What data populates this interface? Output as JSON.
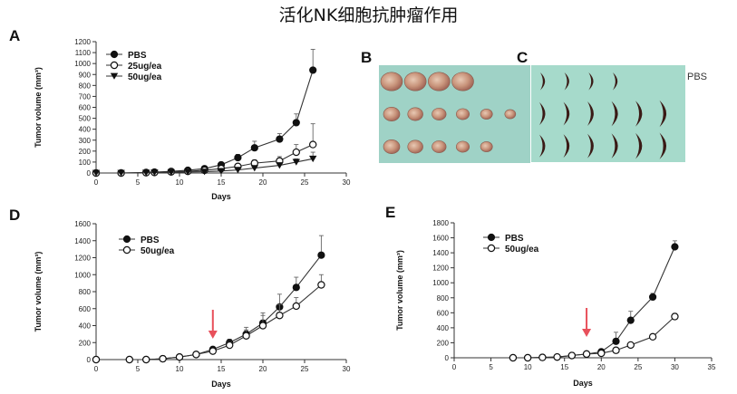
{
  "title": "活化NK细胞抗肿瘤作用",
  "colors": {
    "line": "#333333",
    "arrow": "#e8505b",
    "photo_b_bg": "#9fd2c6",
    "photo_c_bg": "#a6dacb",
    "tumor_b": "#c9a089",
    "tumor_c": "#3a1a16"
  },
  "chart_data": [
    {
      "id": "A",
      "type": "line",
      "xlabel": "Days",
      "ylabel": "Tumor volume (mm³)",
      "xlim": [
        0,
        30
      ],
      "ylim": [
        0,
        1200
      ],
      "xticks": [
        0,
        5,
        10,
        15,
        20,
        25,
        30
      ],
      "yticks": [
        0,
        100,
        200,
        300,
        400,
        500,
        600,
        700,
        800,
        900,
        1000,
        1100,
        1200
      ],
      "legend_position": "top-left",
      "arrow_day": null,
      "series": [
        {
          "name": "PBS",
          "marker": "filled-circle",
          "x": [
            0,
            3,
            6,
            7,
            9,
            11,
            13,
            15,
            17,
            19,
            22,
            24,
            26
          ],
          "y": [
            0,
            0,
            5,
            8,
            15,
            25,
            40,
            75,
            140,
            230,
            310,
            460,
            940
          ],
          "err": [
            0,
            0,
            0,
            0,
            5,
            8,
            12,
            20,
            30,
            60,
            50,
            80,
            190
          ]
        },
        {
          "name": "25ug/ea",
          "marker": "open-circle",
          "x": [
            0,
            3,
            6,
            7,
            9,
            11,
            13,
            15,
            17,
            19,
            22,
            24,
            26
          ],
          "y": [
            0,
            0,
            3,
            5,
            10,
            15,
            25,
            40,
            60,
            90,
            110,
            190,
            260
          ],
          "err": [
            0,
            0,
            0,
            0,
            3,
            5,
            10,
            15,
            20,
            30,
            40,
            70,
            190
          ]
        },
        {
          "name": "50ug/ea",
          "marker": "filled-triangle-down",
          "x": [
            0,
            3,
            6,
            7,
            9,
            11,
            13,
            15,
            17,
            19,
            22,
            24,
            26
          ],
          "y": [
            0,
            0,
            2,
            4,
            6,
            10,
            12,
            18,
            28,
            45,
            70,
            100,
            130
          ],
          "err": [
            0,
            0,
            0,
            0,
            2,
            3,
            5,
            8,
            10,
            15,
            20,
            30,
            60
          ]
        }
      ]
    },
    {
      "id": "D",
      "type": "line",
      "xlabel": "Days",
      "ylabel": "Tumor volume (mm³)",
      "xlim": [
        0,
        30
      ],
      "ylim": [
        0,
        1600
      ],
      "xticks": [
        0,
        5,
        10,
        15,
        20,
        25,
        30
      ],
      "yticks": [
        0,
        200,
        400,
        600,
        800,
        1000,
        1200,
        1400,
        1600
      ],
      "legend_position": "top-left",
      "arrow_day": 14,
      "series": [
        {
          "name": "PBS",
          "marker": "filled-circle",
          "x": [
            0,
            4,
            6,
            8,
            10,
            12,
            14,
            16,
            18,
            20,
            22,
            24,
            27
          ],
          "y": [
            0,
            0,
            0,
            10,
            30,
            60,
            120,
            200,
            300,
            430,
            620,
            850,
            1230
          ],
          "err": [
            0,
            0,
            0,
            0,
            10,
            20,
            30,
            40,
            80,
            120,
            150,
            120,
            230
          ]
        },
        {
          "name": "50ug/ea",
          "marker": "open-circle",
          "x": [
            0,
            4,
            6,
            8,
            10,
            12,
            14,
            16,
            18,
            20,
            22,
            24,
            27
          ],
          "y": [
            0,
            0,
            0,
            10,
            30,
            60,
            100,
            170,
            280,
            400,
            520,
            630,
            880
          ],
          "err": [
            0,
            0,
            0,
            0,
            10,
            15,
            25,
            40,
            70,
            120,
            130,
            100,
            120
          ]
        }
      ]
    },
    {
      "id": "E",
      "type": "line",
      "xlabel": "Days",
      "ylabel": "Tumor volume (mm³)",
      "xlim": [
        0,
        35
      ],
      "ylim": [
        0,
        1800
      ],
      "xticks": [
        0,
        5,
        10,
        15,
        20,
        25,
        30,
        35
      ],
      "yticks": [
        0,
        200,
        400,
        600,
        800,
        1000,
        1200,
        1400,
        1600,
        1800
      ],
      "legend_position": "top-left",
      "arrow_day": 18,
      "series": [
        {
          "name": "PBS",
          "marker": "filled-circle",
          "x": [
            8,
            10,
            12,
            14,
            16,
            18,
            20,
            22,
            24,
            27,
            30
          ],
          "y": [
            0,
            0,
            5,
            10,
            30,
            50,
            80,
            220,
            500,
            810,
            1480
          ],
          "err": [
            0,
            0,
            0,
            0,
            5,
            10,
            20,
            120,
            120,
            50,
            80
          ]
        },
        {
          "name": "50ug/ea",
          "marker": "open-circle",
          "x": [
            8,
            10,
            12,
            14,
            16,
            18,
            20,
            22,
            24,
            27,
            30
          ],
          "y": [
            0,
            0,
            5,
            10,
            30,
            50,
            60,
            100,
            170,
            280,
            550
          ],
          "err": [
            0,
            0,
            0,
            0,
            5,
            10,
            10,
            20,
            20,
            30,
            40
          ]
        }
      ]
    }
  ],
  "photos": [
    {
      "id": "B",
      "rows": [
        4,
        6,
        5
      ]
    },
    {
      "id": "C",
      "label": "PBS",
      "rows": [
        4,
        6,
        6
      ]
    }
  ]
}
